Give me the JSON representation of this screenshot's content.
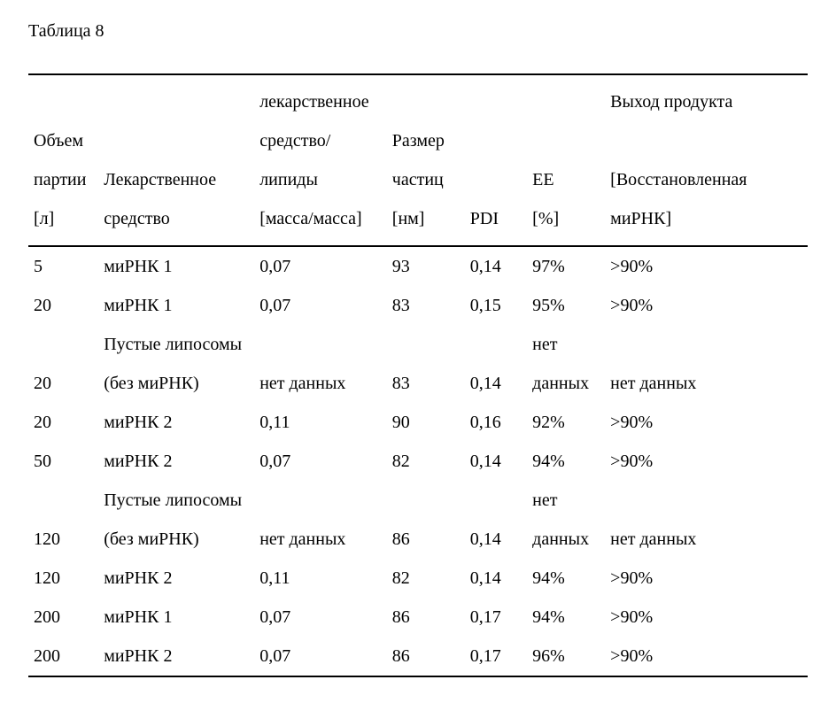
{
  "caption": "Таблица 8",
  "columns": {
    "volume": [
      "Объем",
      "партии",
      "[л]"
    ],
    "drug": [
      "",
      "Лекарственное",
      "средство"
    ],
    "ratio": [
      "лекарственное",
      "средство/",
      "липиды",
      "[масса/масса]"
    ],
    "size": [
      "",
      "Размер",
      "частиц",
      "[нм]"
    ],
    "pdi": [
      "",
      "",
      "",
      "PDI"
    ],
    "ee": [
      "",
      "",
      "EE",
      "[%]"
    ],
    "yield": [
      "Выход продукта",
      "",
      "[Восстановленная",
      "миРНК]"
    ]
  },
  "rows": [
    {
      "volume": "5",
      "drug": "миРНК 1",
      "ratio": "0,07",
      "size": "93",
      "pdi": "0,14",
      "ee": "97%",
      "yield": ">90%"
    },
    {
      "volume": "20",
      "drug": "миРНК 1",
      "ratio": "0,07",
      "size": "83",
      "pdi": "0,15",
      "ee": "95%",
      "yield": ">90%"
    },
    {
      "volume": "20",
      "drug": "Пустые липосомы (без миРНК)",
      "ratio": "нет данных",
      "size": "83",
      "pdi": "0,14",
      "ee": "нет данных",
      "yield": "нет данных"
    },
    {
      "volume": "20",
      "drug": "миРНК 2",
      "ratio": "0,11",
      "size": "90",
      "pdi": "0,16",
      "ee": "92%",
      "yield": ">90%"
    },
    {
      "volume": "50",
      "drug": "миРНК 2",
      "ratio": "0,07",
      "size": "82",
      "pdi": "0,14",
      "ee": "94%",
      "yield": ">90%"
    },
    {
      "volume": "120",
      "drug": "Пустые липосомы (без миРНК)",
      "ratio": "нет данных",
      "size": "86",
      "pdi": "0,14",
      "ee": "нет данных",
      "yield": "нет данных"
    },
    {
      "volume": "120",
      "drug": "миРНК 2",
      "ratio": "0,11",
      "size": "82",
      "pdi": "0,14",
      "ee": "94%",
      "yield": ">90%"
    },
    {
      "volume": "200",
      "drug": "миРНК 1",
      "ratio": "0,07",
      "size": "86",
      "pdi": "0,17",
      "ee": "94%",
      "yield": ">90%"
    },
    {
      "volume": "200",
      "drug": "миРНК 2",
      "ratio": "0,07",
      "size": "86",
      "pdi": "0,17",
      "ee": "96%",
      "yield": ">90%"
    }
  ]
}
